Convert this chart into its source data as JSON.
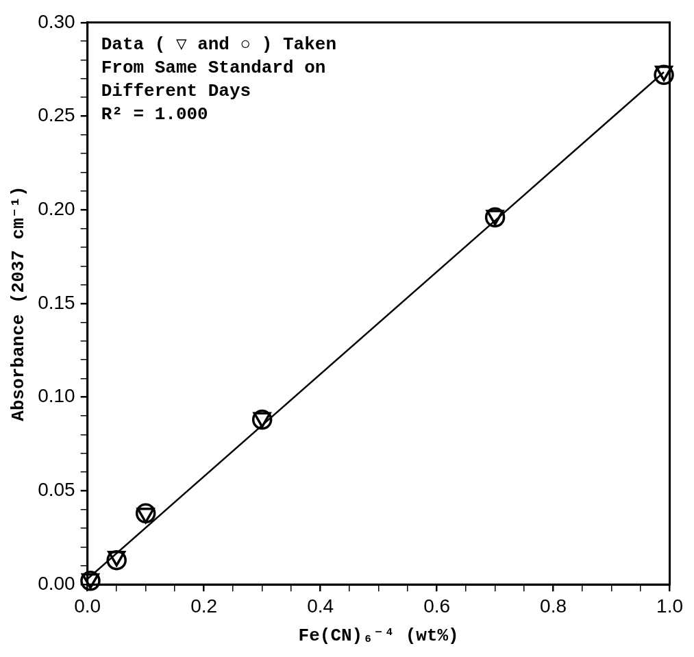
{
  "chart_data": {
    "type": "scatter",
    "xlabel": "Fe(CN)₆⁻⁴ (wt%)",
    "ylabel": "Absorbance (2037 cm⁻¹)",
    "annotations": [
      "Data ( ▽ and ○ ) Taken",
      "From Same Standard on",
      "Different Days",
      "R² = 1.000"
    ],
    "series": [
      {
        "type": "scatter",
        "marker": "triangle",
        "color": "#000000",
        "x": [
          0.005,
          0.05,
          0.1,
          0.3,
          0.7,
          0.99
        ],
        "values": [
          0.003,
          0.015,
          0.038,
          0.089,
          0.197,
          0.274
        ]
      },
      {
        "type": "scatter",
        "marker": "circle",
        "color": "#000000",
        "x": [
          0.005,
          0.05,
          0.1,
          0.3,
          0.7,
          0.99
        ],
        "values": [
          0.002,
          0.013,
          0.038,
          0.088,
          0.196,
          0.272
        ]
      },
      {
        "type": "line",
        "marker": "none",
        "line_style": "solid",
        "color": "#000000",
        "x": [
          0,
          0.99
        ],
        "values": [
          0.003,
          0.2735
        ]
      }
    ],
    "xlim": [
      0,
      1.0
    ],
    "ylim": [
      0,
      0.3
    ],
    "xticks": [
      {
        "value": 0,
        "label": "0.0"
      },
      {
        "value": 0.05,
        "label": null
      },
      {
        "value": 0.1,
        "label": null
      },
      {
        "value": 0.15,
        "label": null
      },
      {
        "value": 0.2,
        "label": "0.2"
      },
      {
        "value": 0.25,
        "label": null
      },
      {
        "value": 0.3,
        "label": null
      },
      {
        "value": 0.35,
        "label": null
      },
      {
        "value": 0.4,
        "label": "0.4"
      },
      {
        "value": 0.45,
        "label": null
      },
      {
        "value": 0.5,
        "label": null
      },
      {
        "value": 0.55,
        "label": null
      },
      {
        "value": 0.6,
        "label": "0.6"
      },
      {
        "value": 0.65,
        "label": null
      },
      {
        "value": 0.7,
        "label": null
      },
      {
        "value": 0.75,
        "label": null
      },
      {
        "value": 0.8,
        "label": "0.8"
      },
      {
        "value": 0.85,
        "label": null
      },
      {
        "value": 0.9,
        "label": null
      },
      {
        "value": 0.95,
        "label": null
      },
      {
        "value": 1.0,
        "label": "1.0"
      }
    ],
    "yticks": [
      {
        "value": 0,
        "label": "0.00"
      },
      {
        "value": 0.01,
        "label": null
      },
      {
        "value": 0.02,
        "label": null
      },
      {
        "value": 0.03,
        "label": null
      },
      {
        "value": 0.04,
        "label": null
      },
      {
        "value": 0.05,
        "label": "0.05"
      },
      {
        "value": 0.06,
        "label": null
      },
      {
        "value": 0.07,
        "label": null
      },
      {
        "value": 0.08,
        "label": null
      },
      {
        "value": 0.09,
        "label": null
      },
      {
        "value": 0.1,
        "label": "0.10"
      },
      {
        "value": 0.11,
        "label": null
      },
      {
        "value": 0.12,
        "label": null
      },
      {
        "value": 0.13,
        "label": null
      },
      {
        "value": 0.14,
        "label": null
      },
      {
        "value": 0.15,
        "label": "0.15"
      },
      {
        "value": 0.16,
        "label": null
      },
      {
        "value": 0.17,
        "label": null
      },
      {
        "value": 0.18,
        "label": null
      },
      {
        "value": 0.19,
        "label": null
      },
      {
        "value": 0.2,
        "label": "0.20"
      },
      {
        "value": 0.21,
        "label": null
      },
      {
        "value": 0.22,
        "label": null
      },
      {
        "value": 0.23,
        "label": null
      },
      {
        "value": 0.24,
        "label": null
      },
      {
        "value": 0.25,
        "label": "0.25"
      },
      {
        "value": 0.26,
        "label": null
      },
      {
        "value": 0.27,
        "label": null
      },
      {
        "value": 0.28,
        "label": null
      },
      {
        "value": 0.29,
        "label": null
      },
      {
        "value": 0.3,
        "label": "0.30"
      }
    ],
    "grid": false,
    "legend": false
  }
}
